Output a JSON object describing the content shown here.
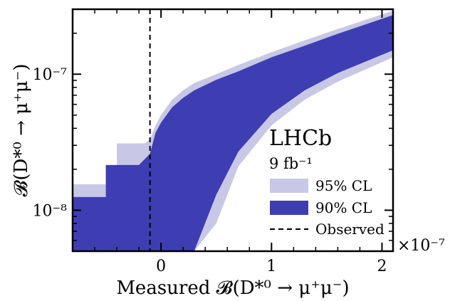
{
  "chart_data": {
    "type": "area",
    "xlabel": "Measured 𝓑(D*⁰ → μ⁺μ⁻)",
    "ylabel": "𝓑(D*⁰ → μ⁺μ⁻)",
    "x_multiplier": "×10⁻⁷",
    "xlim": [
      -0.8,
      2.1
    ],
    "ylim": [
      5e-09,
      3e-07
    ],
    "yscale": "log",
    "x_ticks": [
      0,
      1,
      2
    ],
    "x_tick_labels": [
      "0",
      "1",
      "2"
    ],
    "y_ticks": [
      1e-08,
      1e-07
    ],
    "y_tick_labels": [
      "10⁻⁸",
      "10⁻⁷"
    ],
    "experiment": "LHCb",
    "luminosity": "9 fb⁻¹",
    "observed_x": -0.1,
    "colors": {
      "cl95": "#c8c8e6",
      "cl90": "#3e3eb2",
      "observed": "#000000"
    },
    "series": [
      {
        "name": "95% CL",
        "x": [
          -0.8,
          -0.4,
          -0.4,
          -0.15,
          -0.1,
          -0.05,
          0.0,
          0.1,
          0.2,
          0.3,
          0.5,
          0.7,
          1.0,
          1.3,
          1.6,
          2.1
        ],
        "upper": [
          1.55e-08,
          1.55e-08,
          3.1e-08,
          3.1e-08,
          3.3e-08,
          4.2e-08,
          5e-08,
          6.5e-08,
          7.6e-08,
          8.6e-08,
          1e-07,
          1.17e-07,
          1.45e-07,
          1.77e-07,
          2.15e-07,
          2.92e-07
        ],
        "lower": [
          5e-09,
          5e-09,
          5e-09,
          5e-09,
          5e-09,
          5e-09,
          5e-09,
          5e-09,
          5e-09,
          5e-09,
          8e-09,
          2.1e-08,
          4.2e-08,
          6.5e-08,
          8.8e-08,
          1.33e-07
        ]
      },
      {
        "name": "90% CL",
        "x": [
          -0.8,
          -0.5,
          -0.5,
          -0.2,
          -0.1,
          -0.05,
          0.0,
          0.1,
          0.2,
          0.3,
          0.5,
          0.7,
          1.0,
          1.3,
          1.6,
          2.1
        ],
        "upper": [
          1.25e-08,
          1.25e-08,
          2.15e-08,
          2.15e-08,
          2.6e-08,
          3.7e-08,
          4.4e-08,
          5.7e-08,
          6.7e-08,
          7.6e-08,
          9.1e-08,
          1.05e-07,
          1.33e-07,
          1.62e-07,
          1.98e-07,
          2.72e-07
        ],
        "lower": [
          5e-09,
          5e-09,
          5e-09,
          5e-09,
          5e-09,
          5e-09,
          5e-09,
          5e-09,
          5e-09,
          5e-09,
          1.3e-08,
          2.7e-08,
          5.1e-08,
          7.6e-08,
          1.02e-07,
          1.5e-07
        ]
      }
    ],
    "legend": {
      "placement": "bottom-right",
      "entries": [
        {
          "label": "95% CL",
          "kind": "patch",
          "color": "#c8c8e6"
        },
        {
          "label": "90% CL",
          "kind": "patch",
          "color": "#3e3eb2"
        },
        {
          "label": "Observed",
          "kind": "dashed-line",
          "color": "#000000"
        }
      ]
    }
  }
}
